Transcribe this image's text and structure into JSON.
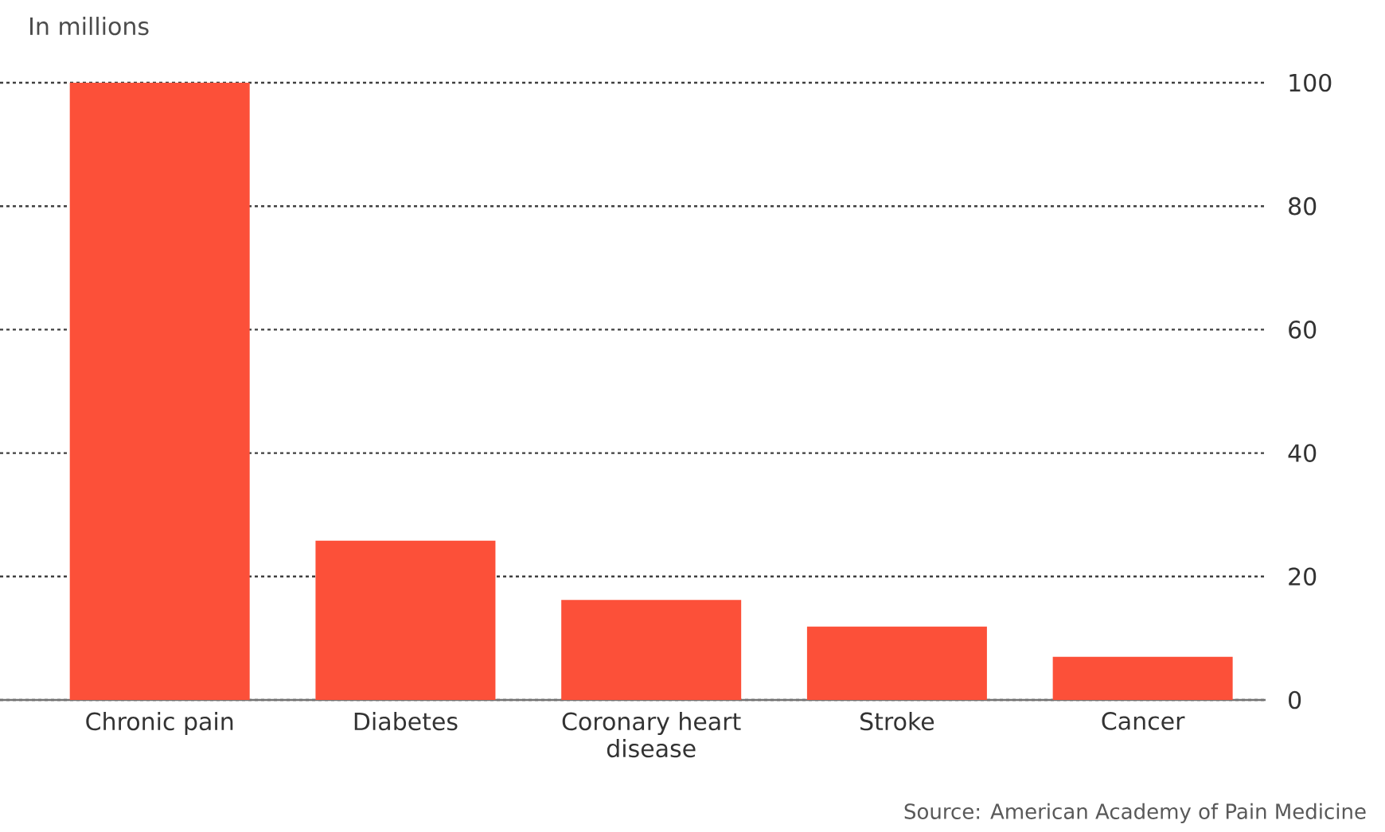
{
  "chart_data": {
    "type": "bar",
    "subtitle": "In millions",
    "categories": [
      "Chronic pain",
      "Diabetes",
      "Coronary heart disease",
      "Stroke",
      "Cancer"
    ],
    "values": [
      100,
      25.8,
      16.2,
      11.9,
      7.0
    ],
    "color": "#fc5039",
    "ylim": [
      0,
      100
    ],
    "yticks": [
      0,
      20,
      40,
      60,
      80,
      100
    ],
    "grid": "y",
    "annotations": [
      "Source: American Academy of Pain Medicine"
    ]
  }
}
